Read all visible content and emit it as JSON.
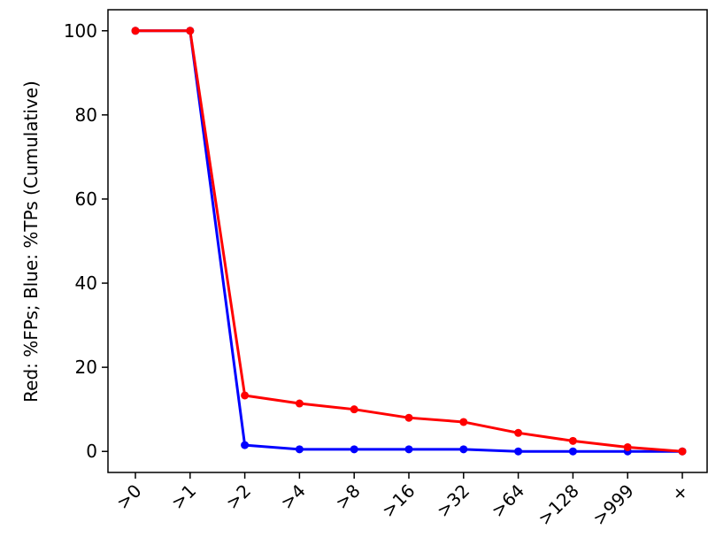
{
  "chart_data": {
    "type": "line",
    "title": "",
    "xlabel": "",
    "ylabel": "Red: %FPs; Blue: %TPs (Cumulative)",
    "categories": [
      ">0",
      ">1",
      ">2",
      ">4",
      ">8",
      ">16",
      ">32",
      ">64",
      ">128",
      ">999",
      "+"
    ],
    "yticks": [
      "0",
      "20",
      "40",
      "60",
      "80",
      "100"
    ],
    "ylim": [
      -5,
      105
    ],
    "grid": false,
    "series": [
      {
        "color": "#0000ff",
        "values": [
          100,
          100,
          1.5,
          0.5,
          0.5,
          0.5,
          0.5,
          0,
          0,
          0,
          0
        ]
      },
      {
        "color": "#ff0000",
        "values": [
          100,
          100,
          13.3,
          11.4,
          10.0,
          8.0,
          7.0,
          4.4,
          2.5,
          1.0,
          0
        ]
      }
    ]
  }
}
